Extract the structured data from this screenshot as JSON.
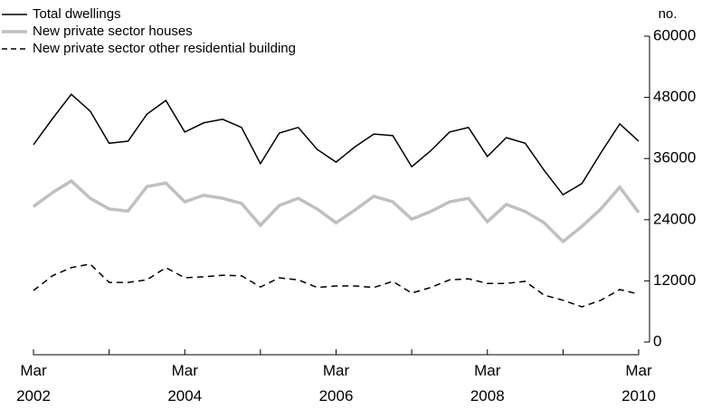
{
  "chart_data": {
    "type": "line",
    "y_unit": "no.",
    "categories": [
      "Mar 2002",
      null,
      null,
      null,
      null,
      null,
      null,
      null,
      "Mar 2004",
      null,
      null,
      null,
      null,
      null,
      null,
      null,
      "Mar 2006",
      null,
      null,
      null,
      null,
      null,
      null,
      null,
      "Mar 2008",
      null,
      null,
      null,
      null,
      null,
      null,
      null,
      "Mar 2010"
    ],
    "ylim": [
      0,
      60000
    ],
    "yticks": [
      0,
      12000,
      24000,
      36000,
      48000,
      60000
    ],
    "series": [
      {
        "name": "Total dwellings",
        "color": "#000000",
        "dash": "solid",
        "values": [
          38700,
          43800,
          48600,
          45300,
          39000,
          39400,
          44700,
          47400,
          41200,
          43000,
          43700,
          42100,
          35000,
          41000,
          42100,
          37800,
          35300,
          38300,
          40800,
          40500,
          34400,
          37500,
          41200,
          42100,
          36400,
          40100,
          39000,
          33700,
          28900,
          31100,
          37100,
          42800,
          39400
        ]
      },
      {
        "name": "New private sector houses",
        "color": "#c0c0c0",
        "dash": "solid",
        "values": [
          26600,
          29300,
          31600,
          28200,
          26100,
          25700,
          30500,
          31200,
          27500,
          28800,
          28200,
          27200,
          22900,
          26800,
          28200,
          26100,
          23400,
          25900,
          28600,
          27500,
          24100,
          25600,
          27500,
          28200,
          23600,
          27000,
          25600,
          23400,
          19700,
          22700,
          26100,
          30400,
          25400
        ]
      },
      {
        "name": "New private sector other residential building",
        "color": "#000000",
        "dash": "dashed",
        "values": [
          10100,
          13000,
          14600,
          15300,
          11700,
          11700,
          12200,
          14600,
          12600,
          12800,
          13100,
          13000,
          10800,
          12600,
          12200,
          10700,
          11000,
          11000,
          10700,
          11900,
          9600,
          10700,
          12200,
          12400,
          11500,
          11500,
          11900,
          9200,
          8200,
          6900,
          8200,
          10300,
          9400
        ]
      }
    ]
  }
}
